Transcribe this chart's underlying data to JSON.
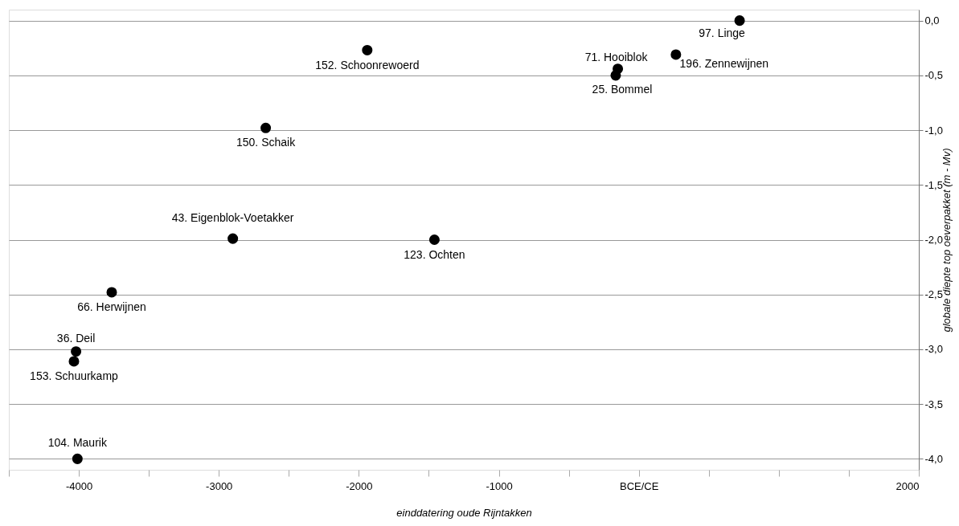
{
  "chart_data": {
    "type": "scatter",
    "xlabel": "einddatering oude Rijntakken",
    "ylabel": "globale diepte top oeverpakket (m - Mv)",
    "x": [
      720,
      265,
      -150,
      -165,
      -1940,
      -2665,
      -2900,
      -1460,
      -3765,
      -4020,
      -4035,
      -4010
    ],
    "series": [
      {
        "color": "#000000",
        "values": [
          0.0,
          -0.31,
          -0.44,
          -0.5,
          -0.27,
          -0.98,
          -1.99,
          -2.0,
          -2.48,
          -3.02,
          -3.11,
          -4.0
        ]
      }
    ],
    "annotations": [
      {
        "text": "97. Linge",
        "x": 720,
        "y": 0.0
      },
      {
        "text": "196. Zennewijnen",
        "x": 265,
        "y": -0.31
      },
      {
        "text": "71. Hooiblok",
        "x": -150,
        "y": -0.44
      },
      {
        "text": "25. Bommel",
        "x": -165,
        "y": -0.5
      },
      {
        "text": "152. Schoonrewoerd",
        "x": -1940,
        "y": -0.27
      },
      {
        "text": "150. Schaik",
        "x": -2665,
        "y": -0.98
      },
      {
        "text": "43. Eigenblok-Voetakker",
        "x": -2900,
        "y": -1.99
      },
      {
        "text": "123. Ochten",
        "x": -1460,
        "y": -2.0
      },
      {
        "text": "66. Herwijnen",
        "x": -3765,
        "y": -2.48
      },
      {
        "text": "36. Deil",
        "x": -4020,
        "y": -3.02
      },
      {
        "text": "153. Schuurkamp",
        "x": -4035,
        "y": -3.11
      },
      {
        "text": "104. Maurik",
        "x": -4010,
        "y": -4.0
      }
    ],
    "xlim": [
      -4500,
      2000
    ],
    "xticks": [
      {
        "value": -4500,
        "label": null
      },
      -4000,
      {
        "value": -3500,
        "label": null
      },
      -3000,
      {
        "value": -2500,
        "label": null
      },
      -2000,
      {
        "value": -1500,
        "label": null
      },
      -1000,
      {
        "value": -500,
        "label": null
      },
      {
        "value": 0,
        "label": "BCE/CE"
      },
      {
        "value": 500,
        "label": null
      },
      {
        "value": 1000,
        "label": null
      },
      {
        "value": 1500,
        "label": null
      },
      2000
    ],
    "ylim": [
      -4.1,
      0.1
    ],
    "yticks": [
      {
        "value": 0,
        "label": "0,0"
      },
      {
        "value": -0.5,
        "label": "-0,5"
      },
      {
        "value": -1,
        "label": "-1,0"
      },
      {
        "value": -1.5,
        "label": "-1,5"
      },
      {
        "value": -2,
        "label": "-2,0"
      },
      {
        "value": -2.5,
        "label": "-2,5"
      },
      {
        "value": -3,
        "label": "-3,0"
      },
      {
        "value": -3.5,
        "label": "-3,5"
      },
      {
        "value": -4,
        "label": "-4,0"
      }
    ],
    "grid": "y",
    "marker": "circle"
  }
}
